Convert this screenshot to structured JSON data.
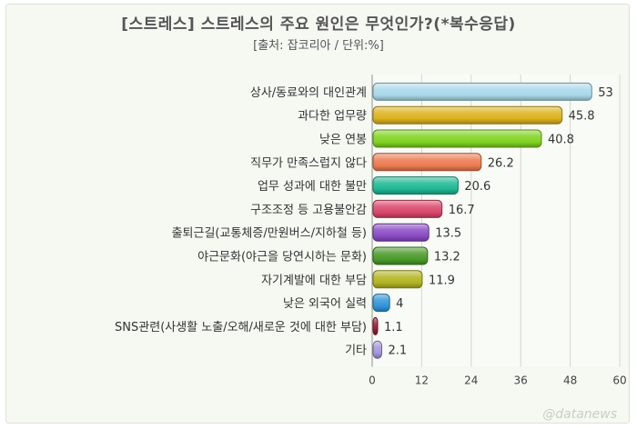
{
  "title": "[스트레스] 스트레스의 주요 원인은 무엇인가?(*복수응답)",
  "subtitle": "[출처: 잡코리아 / 단위:%]",
  "watermark": "@datanews",
  "chart_data": {
    "type": "bar",
    "orientation": "horizontal",
    "categories": [
      "상사/동료와의 대인관계",
      "과다한 업무량",
      "낮은 연봉",
      "직무가 만족스럽지 않다",
      "업무 성과에 대한 불만",
      "구조조정 등 고용불안감",
      "출퇴근길(교통체증/만원버스/지하철 등)",
      "야근문화(야근을 당연시하는 문화)",
      "자기계발에 대한 부담",
      "낮은 외국어 실력",
      "SNS관련(사생활 노출/오해/새로운 것에 대한 부담)",
      "기타"
    ],
    "values": [
      53,
      45.8,
      40.8,
      26.2,
      20.6,
      16.7,
      13.5,
      13.2,
      11.9,
      4,
      1.1,
      2.1
    ],
    "value_labels": [
      "53",
      "45.8",
      "40.8",
      "26.2",
      "20.6",
      "16.7",
      "13.5",
      "13.2",
      "11.9",
      "4",
      "1.1",
      "2.1"
    ],
    "colors": [
      "#a9d8ea",
      "#ddb21f",
      "#7fd221",
      "#ec7a50",
      "#1fb894",
      "#d9466b",
      "#8a4bc4",
      "#4a9a2a",
      "#b2b421",
      "#2f95d8",
      "#9a1838",
      "#a596db"
    ],
    "xlim": [
      0,
      60
    ],
    "xticks": [
      0,
      12,
      24,
      36,
      48,
      60
    ],
    "xtick_labels": [
      "0",
      "12",
      "24",
      "36",
      "48",
      "60"
    ],
    "grid": true,
    "legend": false
  }
}
